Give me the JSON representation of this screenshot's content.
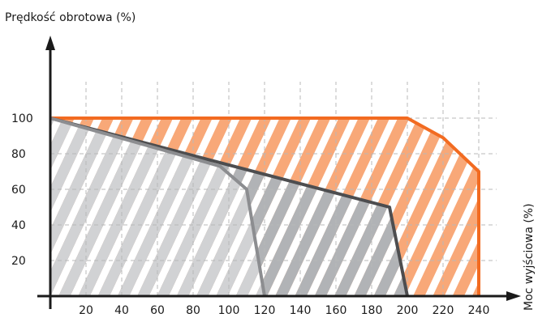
{
  "chart_data": {
    "type": "area",
    "ylabel": "Prędkość obrotowa (%)",
    "xlabel": "Moc wyjściowa (%)",
    "xlim": [
      0,
      250
    ],
    "ylim": [
      0,
      125
    ],
    "x_ticks": [
      20,
      40,
      60,
      80,
      100,
      120,
      140,
      160,
      180,
      200,
      220,
      240
    ],
    "y_ticks": [
      20,
      40,
      60,
      80,
      100
    ],
    "grid": true,
    "series": [
      {
        "color": "#f26b21",
        "fill": "#f8a878",
        "points": [
          [
            0,
            100
          ],
          [
            200,
            100
          ],
          [
            220,
            89
          ],
          [
            240,
            70
          ],
          [
            240,
            0
          ],
          [
            0,
            0
          ]
        ]
      },
      {
        "color": "#4d4d4f",
        "fill": "#b1b3b6",
        "points": [
          [
            0,
            100
          ],
          [
            190,
            50
          ],
          [
            200,
            0
          ],
          [
            0,
            0
          ]
        ]
      },
      {
        "color": "#8c8d90",
        "fill": "#d1d2d4",
        "points": [
          [
            0,
            100
          ],
          [
            95,
            73
          ],
          [
            110,
            60
          ],
          [
            120,
            0
          ],
          [
            0,
            0
          ]
        ]
      }
    ]
  }
}
